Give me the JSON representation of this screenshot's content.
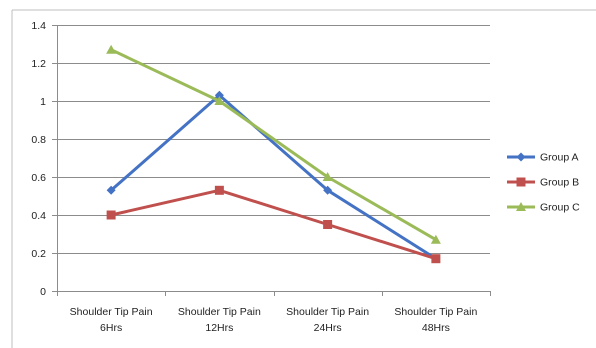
{
  "chart_data": {
    "type": "line",
    "categories": [
      [
        "Shoulder Tip Pain",
        "6Hrs"
      ],
      [
        "Shoulder Tip Pain",
        "12Hrs"
      ],
      [
        "Shoulder Tip Pain",
        "24Hrs"
      ],
      [
        "Shoulder Tip Pain",
        "48Hrs"
      ]
    ],
    "series": [
      {
        "name": "Group A",
        "color": "#4472C4",
        "marker": "diamond",
        "values": [
          0.53,
          1.03,
          0.53,
          0.17
        ]
      },
      {
        "name": "Group B",
        "color": "#C0504D",
        "marker": "square",
        "values": [
          0.4,
          0.53,
          0.35,
          0.17
        ]
      },
      {
        "name": "Group C",
        "color": "#9BBB59",
        "marker": "triangle",
        "values": [
          1.27,
          1.0,
          0.6,
          0.27
        ]
      }
    ],
    "y_ticks": [
      "0",
      "0.2",
      "0.4",
      "0.6",
      "0.8",
      "1",
      "1.2",
      "1.4"
    ],
    "ylim": [
      0,
      1.4
    ],
    "grid": true,
    "legend_position": "right",
    "title": "",
    "xlabel": "",
    "ylabel": ""
  }
}
